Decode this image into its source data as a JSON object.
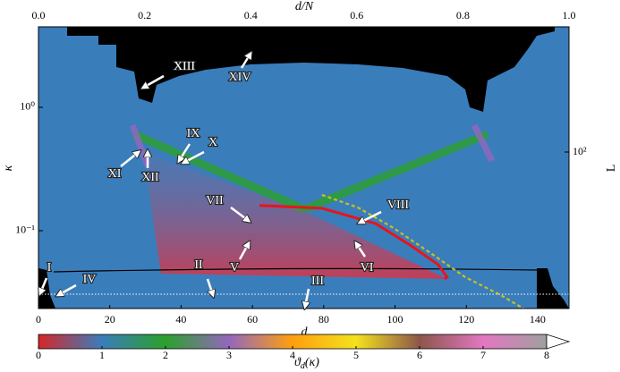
{
  "chart_data": {
    "type": "heatmap",
    "x_label": "d",
    "xlim": [
      0,
      148.8
    ],
    "xticks": [
      0,
      20,
      40,
      60,
      80,
      100,
      120,
      140
    ],
    "x2_label": "d/N",
    "x2lim": [
      0,
      1
    ],
    "x2ticks": [
      {
        "value": 0,
        "label": "0.0"
      },
      0.2,
      0.4,
      0.6,
      0.8,
      {
        "value": 1,
        "label": "1.0"
      }
    ],
    "y_label": "κ",
    "log_y": true,
    "ylim": [
      0.0234,
      4.49
    ],
    "yticks": [
      {
        "value": 0.1,
        "label": "10⁻¹"
      },
      {
        "value": 1,
        "label": "10⁰"
      }
    ],
    "y2_label": "L",
    "y2lim": [
      5.4,
      1033
    ],
    "y2ticks": [
      {
        "value": 100,
        "label": "10²"
      }
    ],
    "series": [
      {
        "color": "#e8141c",
        "style": "solid",
        "x": [
          62,
          79.5,
          94.6,
          104.6,
          112.1,
          114.6,
          113.9
        ],
        "values": [
          0.16,
          0.152,
          0.114,
          0.0753,
          0.0531,
          0.042,
          0.0406
        ]
      },
      {
        "color": "#c8c020",
        "style": "dashed",
        "x": [
          79.5,
          89.6,
          99.6,
          109.6,
          119.7,
          129.7,
          136
        ],
        "values": [
          0.195,
          0.154,
          0.105,
          0.067,
          0.042,
          0.03,
          0.0234
        ]
      }
    ],
    "colorbar": {
      "lim": [
        0,
        8
      ],
      "ticks": [
        0,
        1,
        2,
        3,
        4,
        5,
        6,
        7,
        8
      ],
      "colors": [
        "#d62728",
        "#3a7dbb",
        "#2ca02c",
        "#9467bd",
        "#ff9f0e",
        "#f4e21e",
        "#8c564b",
        "#e377c2",
        "#a0a0a0"
      ],
      "extend": "max",
      "label": {
        "symbol": "ϑ",
        "subscript": "d",
        "argument": "(κ)"
      }
    },
    "annotations": [
      "I",
      "II",
      "III",
      "IV",
      "V",
      "VI",
      "VII",
      "VIII",
      "IX",
      "X",
      "XI",
      "XII",
      "XIII",
      "XIV"
    ]
  }
}
